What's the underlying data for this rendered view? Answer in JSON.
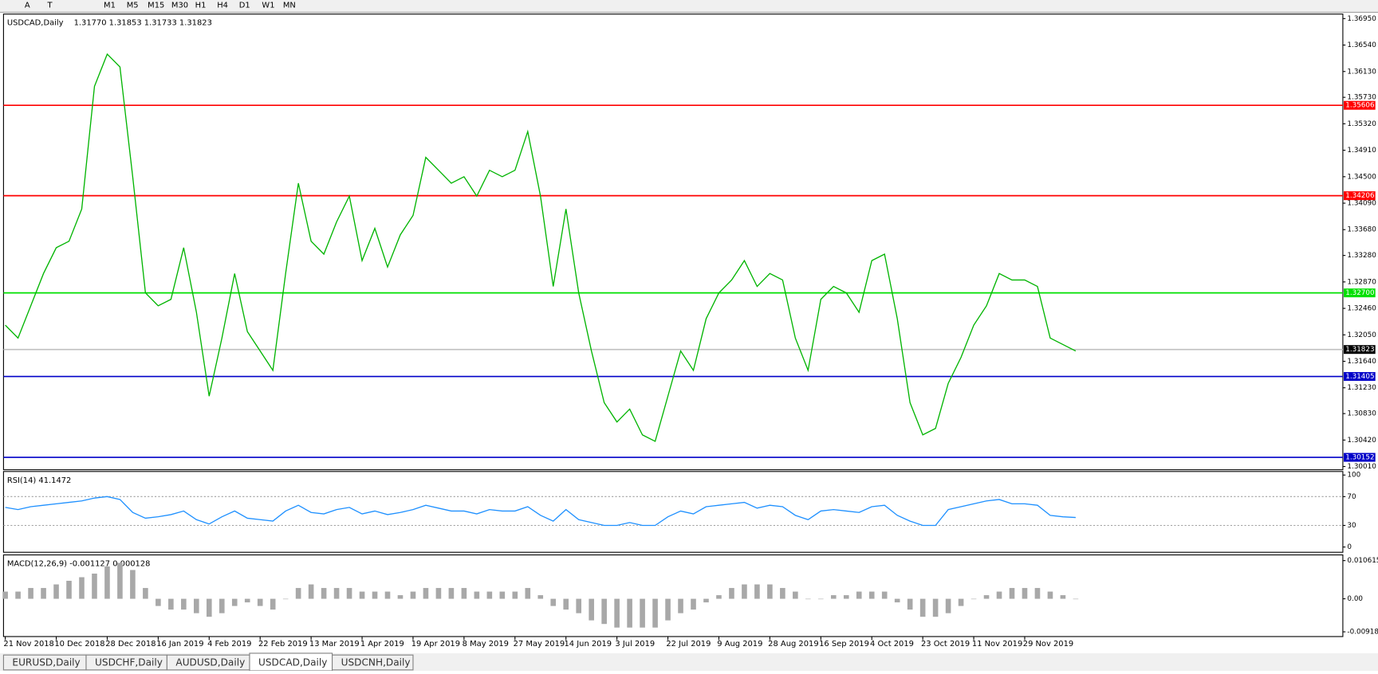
{
  "toolbar": {
    "tools": [
      "A",
      "T"
    ],
    "timeframes": [
      "M1",
      "M5",
      "M15",
      "M30",
      "H1",
      "H4",
      "D1",
      "W1",
      "MN"
    ]
  },
  "chart_data": [
    {
      "type": "line",
      "title": "USDCAD,Daily",
      "quote": "1.31770 1.31853 1.31733 1.31823",
      "categories": [
        "21 Nov 2018",
        null,
        null,
        null,
        "10 Dec 2018",
        null,
        null,
        null,
        "28 Dec 2018",
        null,
        null,
        null,
        "16 Jan 2019",
        null,
        null,
        null,
        "4 Feb 2019",
        null,
        null,
        null,
        "22 Feb 2019",
        null,
        null,
        null,
        "13 Mar 2019",
        null,
        null,
        null,
        "1 Apr 2019",
        null,
        null,
        null,
        "19 Apr 2019",
        null,
        null,
        null,
        "8 May 2019",
        null,
        null,
        null,
        "27 May 2019",
        null,
        null,
        null,
        "14 Jun 2019",
        null,
        null,
        null,
        "3 Jul 2019",
        null,
        null,
        null,
        "22 Jul 2019",
        null,
        null,
        null,
        "9 Aug 2019",
        null,
        null,
        null,
        "28 Aug 2019",
        null,
        null,
        null,
        "16 Sep 2019",
        null,
        null,
        null,
        "4 Oct 2019",
        null,
        null,
        null,
        "23 Oct 2019",
        null,
        null,
        null,
        "11 Nov 2019",
        null,
        null,
        null,
        "29 Nov 2019",
        null,
        null,
        null,
        null
      ],
      "color": "#00b400",
      "values": [
        1.322,
        1.32,
        1.325,
        1.33,
        1.334,
        1.335,
        1.34,
        1.359,
        1.364,
        1.362,
        1.345,
        1.327,
        1.325,
        1.326,
        1.334,
        1.324,
        1.311,
        1.32,
        1.33,
        1.321,
        1.318,
        1.315,
        1.33,
        1.344,
        1.335,
        1.333,
        1.338,
        1.342,
        1.332,
        1.337,
        1.331,
        1.336,
        1.339,
        1.348,
        1.346,
        1.344,
        1.345,
        1.342,
        1.346,
        1.345,
        1.346,
        1.352,
        1.342,
        1.328,
        1.34,
        1.327,
        1.318,
        1.31,
        1.307,
        1.309,
        1.305,
        1.304,
        1.311,
        1.318,
        1.315,
        1.323,
        1.327,
        1.329,
        1.332,
        1.328,
        1.33,
        1.329,
        1.32,
        1.315,
        1.326,
        1.328,
        1.327,
        1.324,
        1.332,
        1.333,
        1.323,
        1.31,
        1.305,
        1.306,
        1.313,
        1.317,
        1.322,
        1.325,
        1.33,
        1.329,
        1.329,
        1.328,
        1.32,
        1.319,
        1.318
      ],
      "ylim": [
        1.2996,
        1.3702
      ],
      "yticks": [
        {
          "value": 1.3695,
          "label": "1.36950"
        },
        {
          "value": 1.3654,
          "label": "1.36540"
        },
        {
          "value": 1.3613,
          "label": "1.36130"
        },
        {
          "value": 1.3573,
          "label": "1.35730"
        },
        {
          "value": 1.3532,
          "label": "1.35320"
        },
        {
          "value": 1.3491,
          "label": "1.34910"
        },
        {
          "value": 1.345,
          "label": "1.34500"
        },
        {
          "value": 1.3409,
          "label": "1.34090"
        },
        {
          "value": 1.3368,
          "label": "1.33680"
        },
        {
          "value": 1.3328,
          "label": "1.33280"
        },
        {
          "value": 1.3287,
          "label": "1.32870"
        },
        {
          "value": 1.3246,
          "label": "1.32460"
        },
        {
          "value": 1.3205,
          "label": "1.32050"
        },
        {
          "value": 1.3164,
          "label": "1.31640"
        },
        {
          "value": 1.3123,
          "label": "1.31230"
        },
        {
          "value": 1.3083,
          "label": "1.30830"
        },
        {
          "value": 1.3042,
          "label": "1.30420"
        },
        {
          "value": 1.3001,
          "label": "1.30010"
        }
      ],
      "levels": [
        {
          "value": 1.35606,
          "color": "#ff0000"
        },
        {
          "value": 1.34206,
          "color": "#ff0000"
        },
        {
          "value": 1.327,
          "label": "1.32700",
          "color": "#00e000"
        },
        {
          "value": 1.31823,
          "color": "#c0c0c0",
          "box": "#000000"
        },
        {
          "value": 1.31405,
          "color": "#0000c8"
        },
        {
          "value": 1.30152,
          "color": "#0000c8"
        }
      ]
    },
    {
      "type": "line",
      "title": "RSI(14) 41.1472",
      "color": "#1e90ff",
      "values": [
        55,
        52,
        56,
        58,
        60,
        62,
        64,
        68,
        70,
        66,
        48,
        40,
        42,
        45,
        50,
        38,
        32,
        42,
        50,
        40,
        38,
        36,
        50,
        58,
        48,
        46,
        52,
        55,
        46,
        50,
        45,
        48,
        52,
        58,
        54,
        50,
        50,
        46,
        52,
        50,
        50,
        56,
        44,
        36,
        52,
        38,
        34,
        30,
        30,
        34,
        30,
        30,
        42,
        50,
        46,
        56,
        58,
        60,
        62,
        54,
        58,
        56,
        44,
        38,
        50,
        52,
        50,
        48,
        56,
        58,
        44,
        36,
        30,
        30,
        52,
        56,
        60,
        64,
        66,
        60,
        60,
        58,
        44,
        42,
        41
      ],
      "ylim": [
        -7.3,
        104.9
      ],
      "yticks": [
        100,
        70,
        30,
        0
      ],
      "dotted_levels": [
        70,
        30
      ]
    },
    {
      "type": "bar",
      "title": "MACD(12,26,9) -0.001127 0.000128",
      "color": "#a8a8a8",
      "values": [
        0.002,
        0.002,
        0.003,
        0.003,
        0.004,
        0.005,
        0.006,
        0.007,
        0.009,
        0.01,
        0.008,
        0.003,
        -0.002,
        -0.003,
        -0.003,
        -0.004,
        -0.005,
        -0.004,
        -0.002,
        -0.001,
        -0.002,
        -0.003,
        0.0,
        0.003,
        0.004,
        0.003,
        0.003,
        0.003,
        0.002,
        0.002,
        0.002,
        0.001,
        0.002,
        0.003,
        0.003,
        0.003,
        0.003,
        0.002,
        0.002,
        0.002,
        0.002,
        0.003,
        0.001,
        -0.002,
        -0.003,
        -0.004,
        -0.006,
        -0.007,
        -0.008,
        -0.008,
        -0.008,
        -0.008,
        -0.006,
        -0.004,
        -0.003,
        -0.001,
        0.001,
        0.003,
        0.004,
        0.004,
        0.004,
        0.003,
        0.002,
        0.0,
        0.0,
        0.001,
        0.001,
        0.002,
        0.002,
        0.002,
        -0.001,
        -0.003,
        -0.005,
        -0.005,
        -0.004,
        -0.002,
        0.0,
        0.001,
        0.002,
        0.003,
        0.003,
        0.003,
        0.002,
        0.001,
        0.0
      ],
      "ylim": [
        -0.0105,
        0.0122
      ],
      "yticks": [
        0.010615,
        {
          "value": 0,
          "label": "0.00"
        },
        -0.009181
      ]
    }
  ],
  "tabs": [
    "EURUSD,Daily",
    "USDCHF,Daily",
    "AUDUSD,Daily",
    "USDCAD,Daily",
    "USDCNH,Daily"
  ]
}
